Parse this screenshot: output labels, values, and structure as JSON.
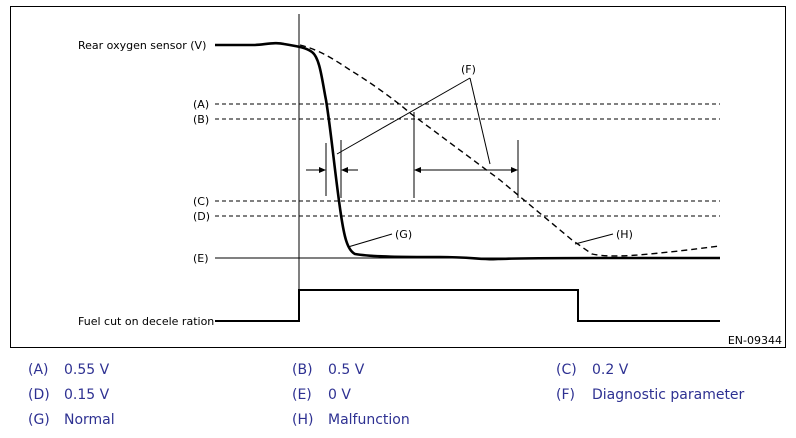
{
  "diagram": {
    "y_label": "Rear oxygen sensor (V)",
    "fuel_cut_label": "Fuel cut on decele ration",
    "figure_id": "EN-09344",
    "level_labels": {
      "A": "(A)",
      "B": "(B)",
      "C": "(C)",
      "D": "(D)",
      "E": "(E)"
    },
    "callouts": {
      "F": "(F)",
      "G": "(G)",
      "H": "(H)"
    }
  },
  "legend": [
    {
      "code": "(A)",
      "text": "0.55 V"
    },
    {
      "code": "(B)",
      "text": "0.5 V"
    },
    {
      "code": "(C)",
      "text": "0.2 V"
    },
    {
      "code": "(D)",
      "text": "0.15 V"
    },
    {
      "code": "(E)",
      "text": "0 V"
    },
    {
      "code": "(F)",
      "text": "Diagnostic parameter"
    },
    {
      "code": "(G)",
      "text": "Normal"
    },
    {
      "code": "(H)",
      "text": "Malfunction"
    }
  ],
  "colors": {
    "legend_text": "#2e3192",
    "line": "#000000"
  }
}
